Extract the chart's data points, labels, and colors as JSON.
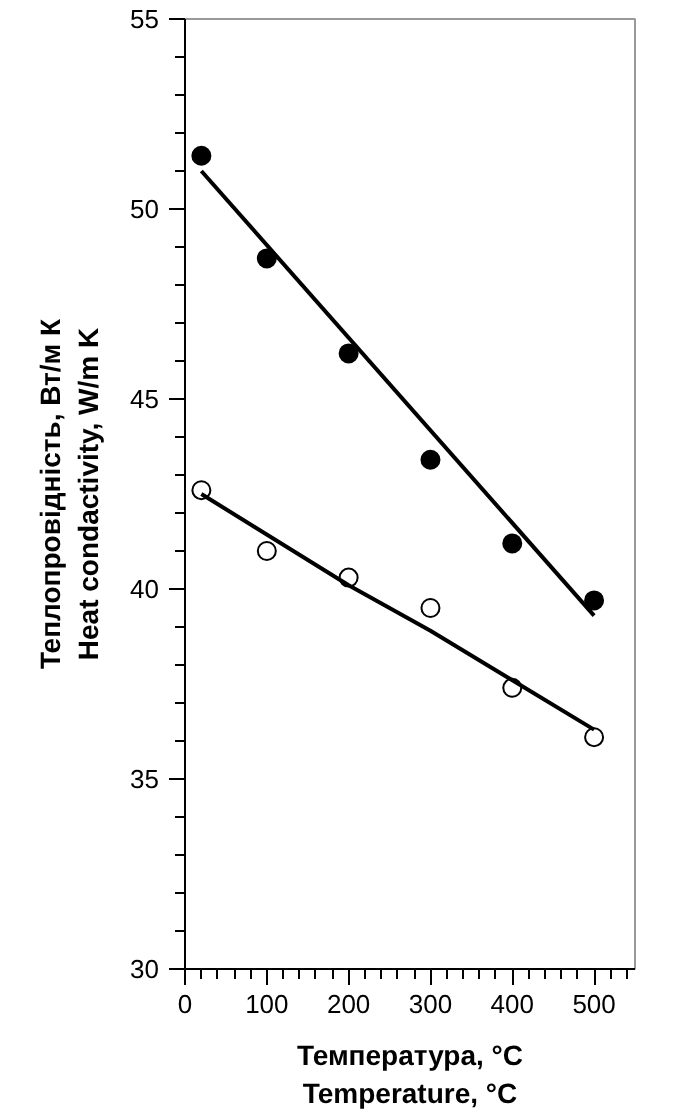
{
  "chart_data": {
    "type": "scatter",
    "xlabel": "Температура, °C\nTemperature, °C",
    "ylabel": "Теплопровідність, Вт/м К\nHeat condactivity, W/m K",
    "xlim": [
      0,
      550
    ],
    "ylim": [
      30,
      55
    ],
    "xticks": [
      0,
      {
        "value": 20,
        "label": null
      },
      {
        "value": 40,
        "label": null
      },
      {
        "value": 60,
        "label": null
      },
      {
        "value": 80,
        "label": null
      },
      100,
      {
        "value": 120,
        "label": null
      },
      {
        "value": 140,
        "label": null
      },
      {
        "value": 160,
        "label": null
      },
      {
        "value": 180,
        "label": null
      },
      200,
      {
        "value": 220,
        "label": null
      },
      {
        "value": 240,
        "label": null
      },
      {
        "value": 260,
        "label": null
      },
      {
        "value": 280,
        "label": null
      },
      300,
      {
        "value": 320,
        "label": null
      },
      {
        "value": 340,
        "label": null
      },
      {
        "value": 360,
        "label": null
      },
      {
        "value": 380,
        "label": null
      },
      400,
      {
        "value": 420,
        "label": null
      },
      {
        "value": 440,
        "label": null
      },
      {
        "value": 460,
        "label": null
      },
      {
        "value": 480,
        "label": null
      },
      500,
      {
        "value": 520,
        "label": null
      },
      {
        "value": 540,
        "label": null
      }
    ],
    "yticks": [
      30,
      {
        "value": 31,
        "label": null
      },
      {
        "value": 32,
        "label": null
      },
      {
        "value": 33,
        "label": null
      },
      {
        "value": 34,
        "label": null
      },
      35,
      {
        "value": 36,
        "label": null
      },
      {
        "value": 37,
        "label": null
      },
      {
        "value": 38,
        "label": null
      },
      {
        "value": 39,
        "label": null
      },
      40,
      {
        "value": 41,
        "label": null
      },
      {
        "value": 42,
        "label": null
      },
      {
        "value": 43,
        "label": null
      },
      {
        "value": 44,
        "label": null
      },
      45,
      {
        "value": 46,
        "label": null
      },
      {
        "value": 47,
        "label": null
      },
      {
        "value": 48,
        "label": null
      },
      {
        "value": 49,
        "label": null
      },
      50,
      {
        "value": 51,
        "label": null
      },
      {
        "value": 52,
        "label": null
      },
      {
        "value": 53,
        "label": null
      },
      {
        "value": 54,
        "label": null
      },
      55
    ],
    "grid": false,
    "x": [
      20,
      100,
      200,
      300,
      400,
      500
    ],
    "series": [
      {
        "marker": "circle",
        "color": "#000000",
        "values": [
          51.4,
          48.7,
          46.2,
          43.4,
          41.2,
          39.7
        ]
      },
      {
        "marker": "circle",
        "color": "#ffffff",
        "values": [
          42.6,
          41.0,
          40.3,
          39.5,
          37.4,
          36.1
        ]
      },
      {
        "type": "line",
        "color": "#000000",
        "x": [
          20,
          500
        ],
        "values": [
          51.0,
          39.3
        ]
      },
      {
        "type": "line",
        "color": "#000000",
        "x": [
          20,
          200,
          300,
          500
        ],
        "values": [
          42.5,
          40.1,
          38.9,
          36.3
        ]
      }
    ]
  }
}
